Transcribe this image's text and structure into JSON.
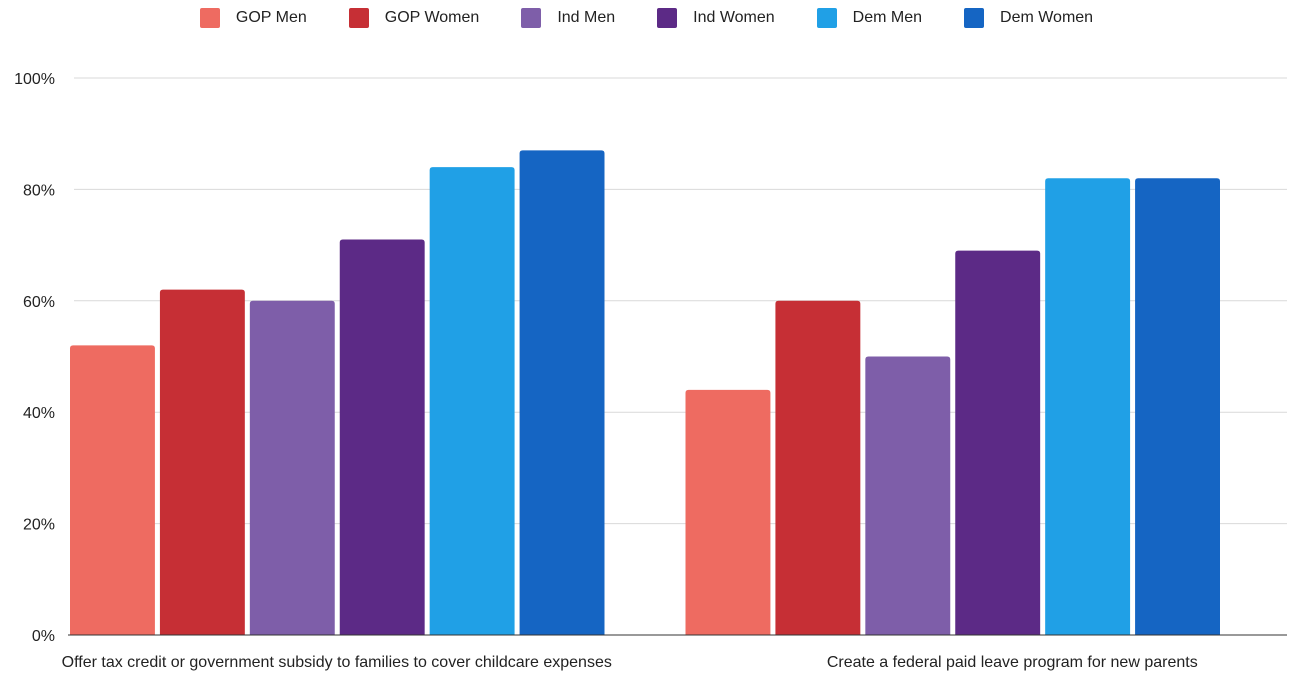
{
  "colors": {
    "GOP Men": "#ee6b61",
    "GOP Women": "#c62f35",
    "Ind Men": "#7e5ea9",
    "Ind Women": "#5c2a86",
    "Dem Men": "#20a0e6",
    "Dem Women": "#1565c3",
    "gridline": "#d9d9d9",
    "baseline": "#333333"
  },
  "chart_data": {
    "type": "bar",
    "title": "",
    "xlabel": "",
    "ylabel": "",
    "ylim": [
      0,
      100
    ],
    "y_unit": "%",
    "y_ticks": [
      "0%",
      "20%",
      "40%",
      "60%",
      "80%",
      "100%"
    ],
    "y_tick_values": [
      0,
      20,
      40,
      60,
      80,
      100
    ],
    "grid": true,
    "legend_position": "top",
    "categories": [
      "Offer tax credit or government subsidy to families to cover childcare expenses",
      "Create a federal paid leave program for new parents"
    ],
    "series": [
      {
        "name": "GOP Men",
        "values": [
          52,
          44
        ]
      },
      {
        "name": "GOP Women",
        "values": [
          62,
          60
        ]
      },
      {
        "name": "Ind Men",
        "values": [
          60,
          50
        ]
      },
      {
        "name": "Ind Women",
        "values": [
          71,
          69
        ]
      },
      {
        "name": "Dem Men",
        "values": [
          84,
          82
        ]
      },
      {
        "name": "Dem Women",
        "values": [
          87,
          82
        ]
      }
    ]
  }
}
